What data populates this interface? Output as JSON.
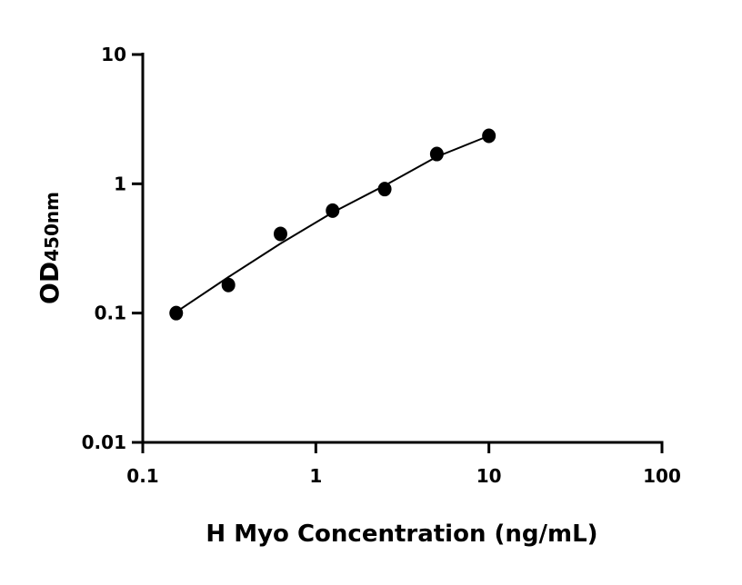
{
  "chart_data": {
    "type": "scatter",
    "title": "",
    "xlabel": "H Myo Concentration (ng/mL)",
    "ylabel": "OD",
    "ylabel_subscript": "450nm",
    "x_scale": "log",
    "y_scale": "log",
    "xlim": [
      0.1,
      100
    ],
    "ylim": [
      0.01,
      10
    ],
    "x_ticks": [
      0.1,
      1,
      10,
      100
    ],
    "x_tick_labels": [
      "0.1",
      "1",
      "10",
      "100"
    ],
    "y_ticks": [
      0.01,
      0.1,
      1,
      10
    ],
    "y_tick_labels": [
      "0.01",
      "0.1",
      "1",
      "10"
    ],
    "grid": false,
    "points": {
      "x": [
        0.156,
        0.3125,
        0.625,
        1.25,
        2.5,
        5,
        10
      ],
      "y": [
        0.1,
        0.165,
        0.41,
        0.62,
        0.91,
        1.7,
        2.35
      ]
    },
    "fit_curve": {
      "x": [
        0.156,
        0.3125,
        0.625,
        1.25,
        2.5,
        5,
        10
      ],
      "y": [
        0.102,
        0.19,
        0.345,
        0.6,
        0.97,
        1.62,
        2.35
      ]
    },
    "colors": {
      "points": "#000000",
      "curve": "#000000",
      "axes": "#000000"
    }
  }
}
